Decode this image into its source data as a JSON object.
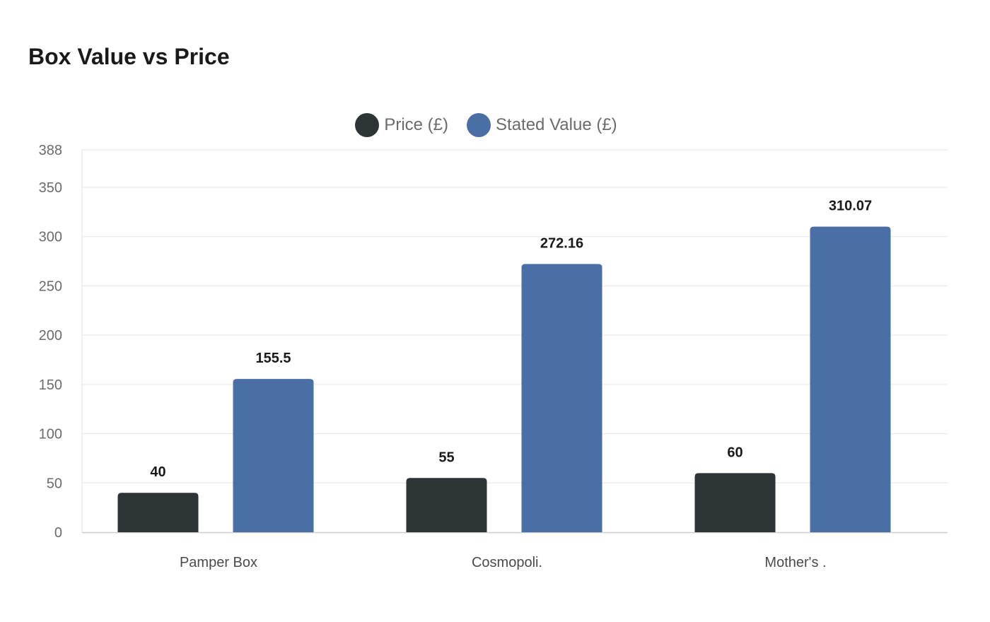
{
  "chart_data": {
    "type": "bar",
    "title": "Box Value vs Price",
    "categories": [
      "Pamper Box",
      "Cosmopoli.",
      "Mother's ."
    ],
    "series": [
      {
        "name": "Price (£)",
        "color": "#2d3436",
        "values": [
          40,
          55,
          60
        ]
      },
      {
        "name": "Stated Value (£)",
        "color": "#4a6fa5",
        "values": [
          155.5,
          272.16,
          310.07
        ]
      }
    ],
    "xlabel": "",
    "ylabel": "",
    "ylim": [
      0,
      388
    ],
    "yticks": [
      0,
      50,
      100,
      150,
      200,
      250,
      300,
      350,
      388
    ],
    "grid": true,
    "legend_position": "top-center"
  }
}
